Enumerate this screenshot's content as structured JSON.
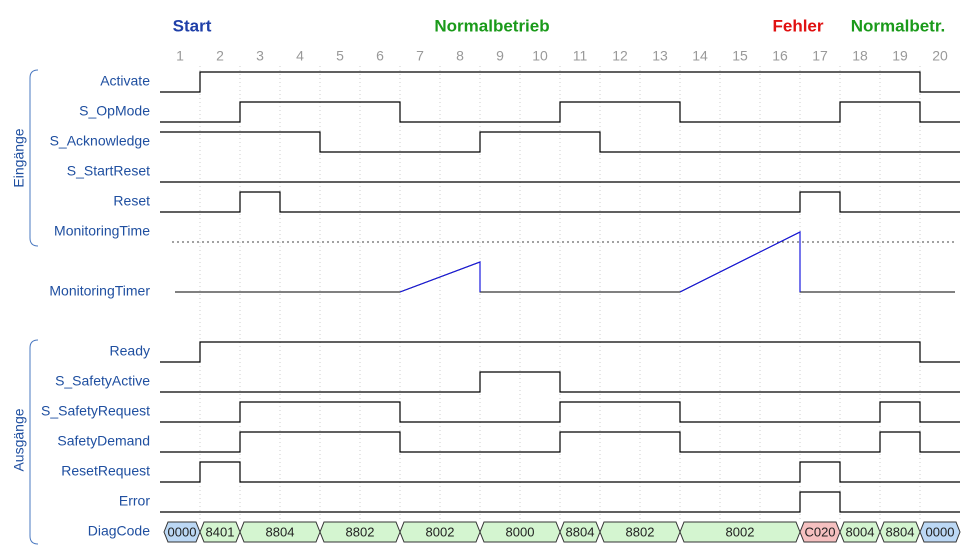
{
  "phases": [
    {
      "label": "Start",
      "color": "#1f3fa8"
    },
    {
      "label": "Normalbetrieb",
      "color": "#1a9a1a"
    },
    {
      "label": "Fehler",
      "color": "#e01010"
    },
    {
      "label": "Normalbetr.",
      "color": "#1a9a1a"
    }
  ],
  "columns": [
    1,
    2,
    3,
    4,
    5,
    6,
    7,
    8,
    9,
    10,
    11,
    12,
    13,
    14,
    15,
    16,
    17,
    18,
    19,
    20
  ],
  "groups": [
    {
      "label": "Eingänge"
    },
    {
      "label": "Ausgänge"
    }
  ],
  "inputs": [
    {
      "name": "Activate",
      "levels": [
        0,
        1,
        1,
        1,
        1,
        1,
        1,
        1,
        1,
        1,
        1,
        1,
        1,
        1,
        1,
        1,
        1,
        1,
        1,
        0
      ]
    },
    {
      "name": "S_OpMode",
      "levels": [
        0,
        0,
        1,
        1,
        1,
        1,
        0,
        0,
        0,
        0,
        1,
        1,
        1,
        0,
        0,
        0,
        0,
        1,
        1,
        0
      ]
    },
    {
      "name": "S_Acknowledge",
      "levels": [
        1,
        1,
        1,
        1,
        0,
        0,
        0,
        0,
        1,
        1,
        1,
        0,
        0,
        0,
        0,
        0,
        0,
        0,
        0,
        0
      ]
    },
    {
      "name": "S_StartReset",
      "levels": [
        0,
        0,
        0,
        0,
        0,
        0,
        0,
        0,
        0,
        0,
        0,
        0,
        0,
        0,
        0,
        0,
        0,
        0,
        0,
        0
      ]
    },
    {
      "name": "Reset",
      "levels": [
        0,
        0,
        1,
        0,
        0,
        0,
        0,
        0,
        0,
        0,
        0,
        0,
        0,
        0,
        0,
        0,
        1,
        0,
        0,
        0
      ]
    }
  ],
  "monitoring": {
    "time": "MonitoringTime",
    "timer": "MonitoringTimer"
  },
  "outputs": [
    {
      "name": "Ready",
      "levels": [
        0,
        1,
        1,
        1,
        1,
        1,
        1,
        1,
        1,
        1,
        1,
        1,
        1,
        1,
        1,
        1,
        1,
        1,
        1,
        0
      ]
    },
    {
      "name": "S_SafetyActive",
      "levels": [
        0,
        0,
        0,
        0,
        0,
        0,
        0,
        0,
        1,
        1,
        0,
        0,
        0,
        0,
        0,
        0,
        0,
        0,
        0,
        0
      ]
    },
    {
      "name": "S_SafetyRequest",
      "levels": [
        0,
        0,
        1,
        1,
        1,
        1,
        0,
        0,
        0,
        0,
        1,
        1,
        1,
        0,
        0,
        0,
        0,
        0,
        1,
        0
      ]
    },
    {
      "name": "SafetyDemand",
      "levels": [
        0,
        0,
        1,
        1,
        1,
        1,
        0,
        0,
        0,
        0,
        1,
        1,
        1,
        0,
        0,
        0,
        0,
        0,
        1,
        0
      ]
    },
    {
      "name": "ResetRequest",
      "levels": [
        0,
        1,
        0,
        0,
        0,
        0,
        0,
        0,
        0,
        0,
        0,
        0,
        0,
        0,
        0,
        0,
        1,
        0,
        0,
        0
      ]
    },
    {
      "name": "Error",
      "levels": [
        0,
        0,
        0,
        0,
        0,
        0,
        0,
        0,
        0,
        0,
        0,
        0,
        0,
        0,
        0,
        0,
        1,
        0,
        0,
        0
      ]
    }
  ],
  "diag": {
    "name": "DiagCode",
    "segments": [
      {
        "label": "0000",
        "start": 1,
        "end": 1,
        "color": "#bcd8f5"
      },
      {
        "label": "8401",
        "start": 2,
        "end": 2,
        "color": "#d4f5d0"
      },
      {
        "label": "8804",
        "start": 3,
        "end": 4,
        "color": "#d4f5d0"
      },
      {
        "label": "8802",
        "start": 5,
        "end": 6,
        "color": "#d4f5d0"
      },
      {
        "label": "8002",
        "start": 7,
        "end": 8,
        "color": "#d4f5d0"
      },
      {
        "label": "8000",
        "start": 9,
        "end": 10,
        "color": "#d4f5d0"
      },
      {
        "label": "8804",
        "start": 11,
        "end": 11,
        "color": "#d4f5d0"
      },
      {
        "label": "8802",
        "start": 12,
        "end": 13,
        "color": "#d4f5d0"
      },
      {
        "label": "8002",
        "start": 14,
        "end": 16,
        "color": "#d4f5d0"
      },
      {
        "label": "C020",
        "start": 17,
        "end": 17,
        "color": "#f5c0c0"
      },
      {
        "label": "8004",
        "start": 18,
        "end": 18,
        "color": "#d4f5d0"
      },
      {
        "label": "8804",
        "start": 19,
        "end": 19,
        "color": "#d4f5d0"
      },
      {
        "label": "0000",
        "start": 20,
        "end": 20,
        "color": "#bcd8f5"
      }
    ]
  }
}
